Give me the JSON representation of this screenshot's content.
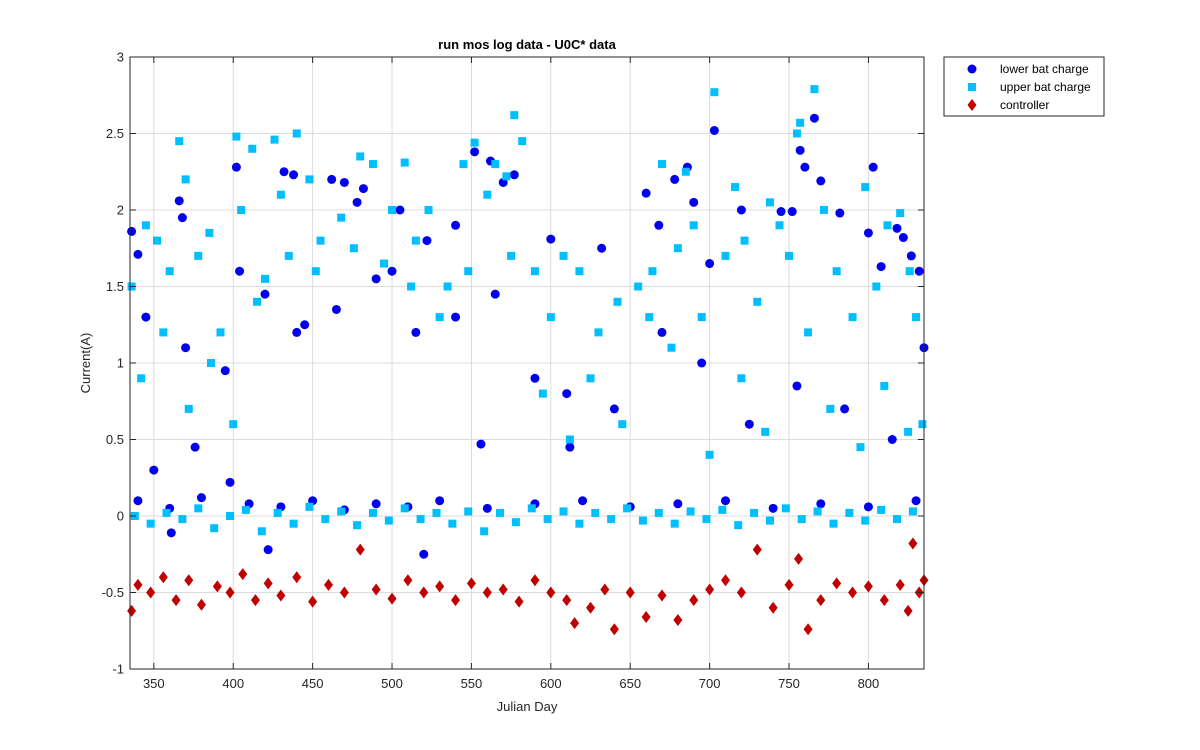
{
  "chart_data": {
    "type": "scatter",
    "title": "run mos log data - U0C* data",
    "xlabel": "Julian Day",
    "ylabel": "Current(A)",
    "xlim": [
      335,
      835
    ],
    "ylim": [
      -1,
      3
    ],
    "x_ticks": [
      "350",
      "400",
      "450",
      "500",
      "550",
      "600",
      "650",
      "700",
      "750",
      "800"
    ],
    "y_ticks": [
      "-1",
      "-0.5",
      "0",
      "0.5",
      "1",
      "1.5",
      "2",
      "2.5",
      "3"
    ],
    "grid": true,
    "legend_position": "outside-top-right",
    "series": [
      {
        "name": "lower bat charge",
        "marker": "circle",
        "color": "#0000ee",
        "points": [
          [
            336,
            1.86
          ],
          [
            340,
            1.71
          ],
          [
            350,
            0.3
          ],
          [
            361,
            -0.11
          ],
          [
            366,
            2.06
          ],
          [
            368,
            1.95
          ],
          [
            376,
            0.45
          ],
          [
            398,
            0.22
          ],
          [
            402,
            2.28
          ],
          [
            404,
            1.6
          ],
          [
            422,
            -0.22
          ],
          [
            432,
            2.25
          ],
          [
            438,
            2.23
          ],
          [
            440,
            1.2
          ],
          [
            462,
            2.2
          ],
          [
            470,
            2.18
          ],
          [
            478,
            2.05
          ],
          [
            482,
            2.14
          ],
          [
            500,
            1.6
          ],
          [
            505,
            2.0
          ],
          [
            520,
            -0.25
          ],
          [
            522,
            1.8
          ],
          [
            540,
            1.9
          ],
          [
            552,
            2.38
          ],
          [
            556,
            0.47
          ],
          [
            562,
            2.32
          ],
          [
            570,
            2.18
          ],
          [
            577,
            2.23
          ],
          [
            600,
            1.81
          ],
          [
            612,
            0.45
          ],
          [
            632,
            1.75
          ],
          [
            660,
            2.11
          ],
          [
            668,
            1.9
          ],
          [
            678,
            2.2
          ],
          [
            686,
            2.28
          ],
          [
            690,
            2.05
          ],
          [
            700,
            1.65
          ],
          [
            703,
            2.52
          ],
          [
            720,
            2.0
          ],
          [
            745,
            1.99
          ],
          [
            752,
            1.99
          ],
          [
            757,
            2.39
          ],
          [
            760,
            2.28
          ],
          [
            766,
            2.6
          ],
          [
            770,
            2.19
          ],
          [
            782,
            1.98
          ],
          [
            800,
            1.85
          ],
          [
            803,
            2.28
          ],
          [
            808,
            1.63
          ],
          [
            818,
            1.88
          ],
          [
            822,
            1.82
          ],
          [
            827,
            1.7
          ],
          [
            832,
            1.6
          ],
          [
            835,
            1.1
          ],
          [
            340,
            0.1
          ],
          [
            360,
            0.05
          ],
          [
            380,
            0.12
          ],
          [
            410,
            0.08
          ],
          [
            430,
            0.06
          ],
          [
            450,
            0.1
          ],
          [
            470,
            0.04
          ],
          [
            490,
            0.08
          ],
          [
            510,
            0.06
          ],
          [
            530,
            0.1
          ],
          [
            560,
            0.05
          ],
          [
            590,
            0.08
          ],
          [
            620,
            0.1
          ],
          [
            650,
            0.06
          ],
          [
            680,
            0.08
          ],
          [
            710,
            0.1
          ],
          [
            740,
            0.05
          ],
          [
            770,
            0.08
          ],
          [
            800,
            0.06
          ],
          [
            830,
            0.1
          ],
          [
            345,
            1.3
          ],
          [
            370,
            1.1
          ],
          [
            395,
            0.95
          ],
          [
            420,
            1.45
          ],
          [
            445,
            1.25
          ],
          [
            465,
            1.35
          ],
          [
            490,
            1.55
          ],
          [
            515,
            1.2
          ],
          [
            540,
            1.3
          ],
          [
            565,
            1.45
          ],
          [
            590,
            0.9
          ],
          [
            610,
            0.8
          ],
          [
            640,
            0.7
          ],
          [
            670,
            1.2
          ],
          [
            695,
            1.0
          ],
          [
            725,
            0.6
          ],
          [
            755,
            0.85
          ],
          [
            785,
            0.7
          ],
          [
            815,
            0.5
          ]
        ]
      },
      {
        "name": "upper bat charge",
        "marker": "square",
        "color": "#00bfff",
        "points": [
          [
            336,
            1.5
          ],
          [
            345,
            1.9
          ],
          [
            352,
            1.8
          ],
          [
            360,
            1.6
          ],
          [
            366,
            2.45
          ],
          [
            370,
            2.2
          ],
          [
            378,
            1.7
          ],
          [
            385,
            1.85
          ],
          [
            392,
            1.2
          ],
          [
            402,
            2.48
          ],
          [
            405,
            2.0
          ],
          [
            412,
            2.4
          ],
          [
            420,
            1.55
          ],
          [
            426,
            2.46
          ],
          [
            430,
            2.1
          ],
          [
            440,
            2.5
          ],
          [
            448,
            2.2
          ],
          [
            455,
            1.8
          ],
          [
            468,
            1.95
          ],
          [
            480,
            2.35
          ],
          [
            488,
            2.3
          ],
          [
            500,
            2.0
          ],
          [
            508,
            2.31
          ],
          [
            515,
            1.8
          ],
          [
            523,
            2.0
          ],
          [
            535,
            1.5
          ],
          [
            545,
            2.3
          ],
          [
            552,
            2.44
          ],
          [
            560,
            2.1
          ],
          [
            565,
            2.3
          ],
          [
            572,
            2.22
          ],
          [
            577,
            2.62
          ],
          [
            582,
            2.45
          ],
          [
            590,
            1.6
          ],
          [
            600,
            1.3
          ],
          [
            608,
            1.7
          ],
          [
            618,
            1.6
          ],
          [
            630,
            1.2
          ],
          [
            642,
            1.4
          ],
          [
            655,
            1.5
          ],
          [
            664,
            1.6
          ],
          [
            670,
            2.3
          ],
          [
            680,
            1.75
          ],
          [
            685,
            2.25
          ],
          [
            690,
            1.9
          ],
          [
            695,
            1.3
          ],
          [
            703,
            2.77
          ],
          [
            710,
            1.7
          ],
          [
            716,
            2.15
          ],
          [
            722,
            1.8
          ],
          [
            730,
            1.4
          ],
          [
            738,
            2.05
          ],
          [
            744,
            1.9
          ],
          [
            750,
            1.7
          ],
          [
            755,
            2.5
          ],
          [
            757,
            2.57
          ],
          [
            766,
            2.79
          ],
          [
            772,
            2.0
          ],
          [
            780,
            1.6
          ],
          [
            790,
            1.3
          ],
          [
            798,
            2.15
          ],
          [
            805,
            1.5
          ],
          [
            812,
            1.9
          ],
          [
            820,
            1.98
          ],
          [
            826,
            1.6
          ],
          [
            830,
            1.3
          ],
          [
            834,
            0.6
          ],
          [
            338,
            0.0
          ],
          [
            348,
            -0.05
          ],
          [
            358,
            0.02
          ],
          [
            368,
            -0.02
          ],
          [
            378,
            0.05
          ],
          [
            388,
            -0.08
          ],
          [
            398,
            0.0
          ],
          [
            408,
            0.04
          ],
          [
            418,
            -0.1
          ],
          [
            428,
            0.02
          ],
          [
            438,
            -0.05
          ],
          [
            448,
            0.06
          ],
          [
            458,
            -0.02
          ],
          [
            468,
            0.03
          ],
          [
            478,
            -0.06
          ],
          [
            488,
            0.02
          ],
          [
            498,
            -0.03
          ],
          [
            508,
            0.05
          ],
          [
            518,
            -0.02
          ],
          [
            528,
            0.02
          ],
          [
            538,
            -0.05
          ],
          [
            548,
            0.03
          ],
          [
            558,
            -0.1
          ],
          [
            568,
            0.02
          ],
          [
            578,
            -0.04
          ],
          [
            588,
            0.05
          ],
          [
            598,
            -0.02
          ],
          [
            608,
            0.03
          ],
          [
            618,
            -0.05
          ],
          [
            628,
            0.02
          ],
          [
            638,
            -0.02
          ],
          [
            648,
            0.05
          ],
          [
            658,
            -0.03
          ],
          [
            668,
            0.02
          ],
          [
            678,
            -0.05
          ],
          [
            688,
            0.03
          ],
          [
            698,
            -0.02
          ],
          [
            708,
            0.04
          ],
          [
            718,
            -0.06
          ],
          [
            728,
            0.02
          ],
          [
            738,
            -0.03
          ],
          [
            748,
            0.05
          ],
          [
            758,
            -0.02
          ],
          [
            768,
            0.03
          ],
          [
            778,
            -0.05
          ],
          [
            788,
            0.02
          ],
          [
            798,
            -0.03
          ],
          [
            808,
            0.04
          ],
          [
            818,
            -0.02
          ],
          [
            828,
            0.03
          ],
          [
            342,
            0.9
          ],
          [
            356,
            1.2
          ],
          [
            372,
            0.7
          ],
          [
            386,
            1.0
          ],
          [
            400,
            0.6
          ],
          [
            415,
            1.4
          ],
          [
            435,
            1.7
          ],
          [
            452,
            1.6
          ],
          [
            476,
            1.75
          ],
          [
            495,
            1.65
          ],
          [
            512,
            1.5
          ],
          [
            530,
            1.3
          ],
          [
            548,
            1.6
          ],
          [
            575,
            1.7
          ],
          [
            595,
            0.8
          ],
          [
            612,
            0.5
          ],
          [
            625,
            0.9
          ],
          [
            645,
            0.6
          ],
          [
            662,
            1.3
          ],
          [
            676,
            1.1
          ],
          [
            700,
            0.4
          ],
          [
            720,
            0.9
          ],
          [
            735,
            0.55
          ],
          [
            762,
            1.2
          ],
          [
            776,
            0.7
          ],
          [
            795,
            0.45
          ],
          [
            810,
            0.85
          ],
          [
            825,
            0.55
          ]
        ]
      },
      {
        "name": "controller",
        "marker": "diamond",
        "color": "#c00000",
        "points": [
          [
            336,
            -0.62
          ],
          [
            340,
            -0.45
          ],
          [
            348,
            -0.5
          ],
          [
            356,
            -0.4
          ],
          [
            364,
            -0.55
          ],
          [
            372,
            -0.42
          ],
          [
            380,
            -0.58
          ],
          [
            390,
            -0.46
          ],
          [
            398,
            -0.5
          ],
          [
            406,
            -0.38
          ],
          [
            414,
            -0.55
          ],
          [
            422,
            -0.44
          ],
          [
            430,
            -0.52
          ],
          [
            440,
            -0.4
          ],
          [
            450,
            -0.56
          ],
          [
            460,
            -0.45
          ],
          [
            470,
            -0.5
          ],
          [
            480,
            -0.22
          ],
          [
            490,
            -0.48
          ],
          [
            500,
            -0.54
          ],
          [
            510,
            -0.42
          ],
          [
            520,
            -0.5
          ],
          [
            530,
            -0.46
          ],
          [
            540,
            -0.55
          ],
          [
            550,
            -0.44
          ],
          [
            560,
            -0.5
          ],
          [
            570,
            -0.48
          ],
          [
            580,
            -0.56
          ],
          [
            590,
            -0.42
          ],
          [
            600,
            -0.5
          ],
          [
            610,
            -0.55
          ],
          [
            615,
            -0.7
          ],
          [
            625,
            -0.6
          ],
          [
            634,
            -0.48
          ],
          [
            640,
            -0.74
          ],
          [
            650,
            -0.5
          ],
          [
            660,
            -0.66
          ],
          [
            670,
            -0.52
          ],
          [
            680,
            -0.68
          ],
          [
            690,
            -0.55
          ],
          [
            700,
            -0.48
          ],
          [
            710,
            -0.42
          ],
          [
            720,
            -0.5
          ],
          [
            730,
            -0.22
          ],
          [
            740,
            -0.6
          ],
          [
            750,
            -0.45
          ],
          [
            756,
            -0.28
          ],
          [
            762,
            -0.74
          ],
          [
            770,
            -0.55
          ],
          [
            780,
            -0.44
          ],
          [
            790,
            -0.5
          ],
          [
            800,
            -0.46
          ],
          [
            810,
            -0.55
          ],
          [
            820,
            -0.45
          ],
          [
            825,
            -0.62
          ],
          [
            828,
            -0.18
          ],
          [
            832,
            -0.5
          ],
          [
            835,
            -0.42
          ]
        ]
      }
    ]
  }
}
